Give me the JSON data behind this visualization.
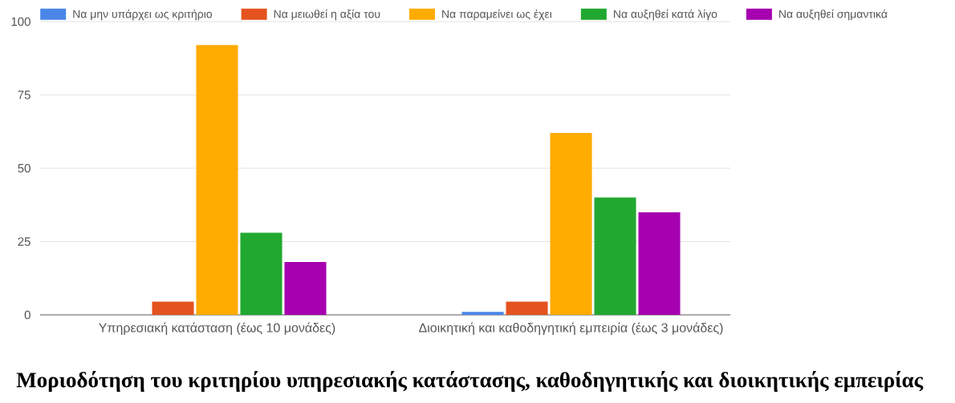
{
  "chart_data": {
    "type": "bar",
    "title": "Μοριοδότηση του κριτηρίου υπηρεσιακής κατάστασης, καθοδηγητικής και διοικητικής εμπειρίας",
    "categories": [
      "Υπηρεσιακή κατάσταση (έως 10 μονάδες)",
      "Διοικητική και καθοδηγητική εμπειρία (έως 3 μονάδες)"
    ],
    "series": [
      {
        "name": "Να μην υπάρχει ως κριτήριο",
        "color": "#4a86e8",
        "values": [
          0,
          1
        ]
      },
      {
        "name": "Να μειωθεί η αξία του",
        "color": "#e4531f",
        "values": [
          4.5,
          4.5
        ]
      },
      {
        "name": "Να παραμείνει ως έχει",
        "color": "#ffab00",
        "values": [
          92,
          62
        ]
      },
      {
        "name": "Να αυξηθεί κατά λίγο",
        "color": "#21a830",
        "values": [
          28,
          40
        ]
      },
      {
        "name": "Να αυξηθεί σημαντικά",
        "color": "#a600b0",
        "values": [
          18,
          35
        ]
      }
    ],
    "ylim": [
      0,
      100
    ],
    "yticks": [
      0,
      25,
      50,
      75,
      100
    ],
    "grid": "y",
    "legend": "top"
  }
}
